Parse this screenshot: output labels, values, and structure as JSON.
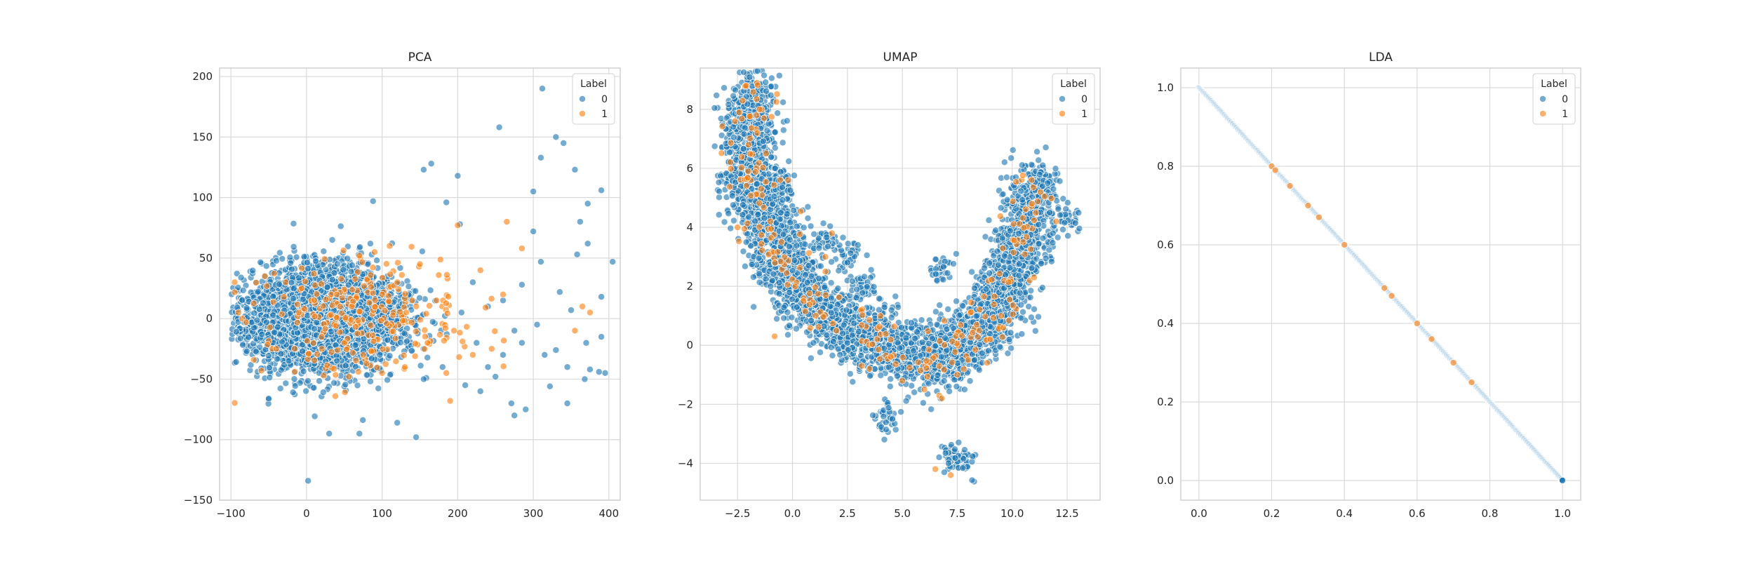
{
  "colors": {
    "label_0": "#1f77b4",
    "label_1": "#ff7f0e",
    "grid": "#d9d9d9",
    "spine": "#cccccc",
    "text": "#262626"
  },
  "chart_data": [
    {
      "type": "scatter",
      "title": "PCA",
      "xlabel": "",
      "ylabel": "",
      "xlim": [
        -115,
        415
      ],
      "ylim": [
        -150,
        207
      ],
      "xticks": [
        -100,
        0,
        100,
        200,
        300,
        400
      ],
      "yticks": [
        -150,
        -100,
        -50,
        0,
        50,
        100,
        150,
        200
      ],
      "xtick_labels": [
        "−100",
        "0",
        "100",
        "200",
        "300",
        "400"
      ],
      "ytick_labels": [
        "−150",
        "−100",
        "−50",
        "0",
        "50",
        "100",
        "150",
        "200"
      ],
      "grid": true,
      "legend": {
        "title": "Label",
        "placement": "top-right",
        "entries": [
          "0",
          "1"
        ]
      },
      "series": [
        {
          "name": "0",
          "color": "#1f77b4",
          "shape": "gaussian cloud",
          "center": [
            25,
            0
          ],
          "spread": [
            55,
            20
          ],
          "count": 4200,
          "outliers": [
            [
              312,
              190
            ],
            [
              255,
              158
            ],
            [
              330,
              150
            ],
            [
              340,
              145
            ],
            [
              355,
              123
            ],
            [
              310,
              133
            ],
            [
              165,
              128
            ],
            [
              155,
              123
            ],
            [
              390,
              106
            ],
            [
              300,
              105
            ],
            [
              372,
              95
            ],
            [
              88,
              97
            ],
            [
              300,
              72
            ],
            [
              362,
              80
            ],
            [
              372,
              62
            ],
            [
              358,
              53
            ],
            [
              405,
              47
            ],
            [
              310,
              47
            ],
            [
              200,
              118
            ],
            [
              185,
              96
            ],
            [
              203,
              78
            ],
            [
              390,
              18
            ],
            [
              285,
              28
            ],
            [
              335,
              22
            ],
            [
              350,
              7
            ],
            [
              390,
              -15
            ],
            [
              370,
              -20
            ],
            [
              330,
              -26
            ],
            [
              345,
              -40
            ],
            [
              375,
              -42
            ],
            [
              395,
              -45
            ],
            [
              322,
              -56
            ],
            [
              368,
              -50
            ],
            [
              387,
              -44
            ],
            [
              290,
              -75
            ],
            [
              345,
              -70
            ],
            [
              271,
              -70
            ],
            [
              275,
              -80
            ],
            [
              120,
              -86
            ],
            [
              145,
              -98
            ],
            [
              30,
              -95
            ],
            [
              70,
              -95
            ],
            [
              -50,
              -66
            ],
            [
              2,
              -134
            ],
            [
              250,
              -48
            ],
            [
              260,
              -30
            ],
            [
              240,
              -40
            ],
            [
              275,
              -10
            ],
            [
              315,
              -30
            ],
            [
              220,
              30
            ],
            [
              240,
              10
            ],
            [
              260,
              15
            ],
            [
              285,
              -20
            ],
            [
              305,
              -5
            ],
            [
              210,
              -55
            ],
            [
              230,
              -60
            ],
            [
              155,
              -50
            ],
            [
              180,
              -40
            ],
            [
              205,
              5
            ],
            [
              225,
              -20
            ]
          ]
        },
        {
          "name": "1",
          "color": "#ff7f0e",
          "shape": "sparse scatter",
          "center": [
            80,
            0
          ],
          "spread": [
            70,
            25
          ],
          "count": 240,
          "points": [
            [
              -90,
              5
            ],
            [
              -85,
              0
            ],
            [
              -80,
              -3
            ],
            [
              -55,
              35
            ],
            [
              265,
              80
            ],
            [
              285,
              58
            ],
            [
              200,
              77
            ],
            [
              365,
              10
            ],
            [
              375,
              5
            ],
            [
              355,
              -10
            ],
            [
              190,
              -68
            ],
            [
              195,
              -10
            ],
            [
              230,
              40
            ],
            [
              175,
              36
            ],
            [
              120,
              30
            ],
            [
              100,
              20
            ],
            [
              140,
              15
            ],
            [
              160,
              -20
            ],
            [
              130,
              -40
            ],
            [
              110,
              60
            ],
            [
              90,
              55
            ],
            [
              70,
              52
            ],
            [
              150,
              45
            ],
            [
              172,
              15
            ],
            [
              60,
              10
            ],
            [
              40,
              20
            ],
            [
              20,
              -15
            ],
            [
              -10,
              5
            ],
            [
              -40,
              -25
            ],
            [
              245,
              -25
            ],
            [
              220,
              -30
            ],
            [
              260,
              20
            ],
            [
              185,
              -45
            ],
            [
              100,
              -45
            ],
            [
              75,
              -30
            ],
            [
              50,
              -20
            ],
            [
              -30,
              18
            ]
          ]
        }
      ]
    },
    {
      "type": "scatter",
      "title": "UMAP",
      "xlabel": "",
      "ylabel": "",
      "xlim": [
        -4.2,
        14.0
      ],
      "ylim": [
        -5.25,
        9.4
      ],
      "xticks": [
        -2.5,
        0.0,
        2.5,
        5.0,
        7.5,
        10.0,
        12.5
      ],
      "yticks": [
        -4,
        -2,
        0,
        2,
        4,
        6,
        8
      ],
      "xtick_labels": [
        "−2.5",
        "0.0",
        "2.5",
        "5.0",
        "7.5",
        "10.0",
        "12.5"
      ],
      "ytick_labels": [
        "−4",
        "−2",
        "0",
        "2",
        "4",
        "6",
        "8"
      ],
      "grid": true,
      "legend": {
        "title": "Label",
        "placement": "top-right",
        "entries": [
          "0",
          "1"
        ]
      },
      "series": [
        {
          "name": "0",
          "color": "#1f77b4",
          "shape": "curved band (horseshoe)",
          "count": 4200,
          "path": [
            [
              -2.0,
              8.5
            ],
            [
              -1.8,
              7.5
            ],
            [
              -2.0,
              6.0
            ],
            [
              -1.5,
              5.0
            ],
            [
              -1.0,
              4.0
            ],
            [
              -0.5,
              3.0
            ],
            [
              0.0,
              2.2
            ],
            [
              0.8,
              1.5
            ],
            [
              2.0,
              0.8
            ],
            [
              3.5,
              0.3
            ],
            [
              5.0,
              -0.3
            ],
            [
              6.5,
              -0.5
            ],
            [
              7.8,
              0.0
            ],
            [
              8.8,
              0.8
            ],
            [
              9.7,
              1.8
            ],
            [
              10.3,
              3.0
            ],
            [
              10.8,
              4.5
            ],
            [
              11.0,
              5.5
            ]
          ],
          "extra_blobs": [
            [
              -2.8,
              5.5
            ],
            [
              -0.5,
              5.5
            ],
            [
              7.8,
              -4.0
            ],
            [
              7.2,
              -3.7
            ],
            [
              12.5,
              4.3
            ],
            [
              6.8,
              2.6
            ],
            [
              2.5,
              3.0
            ],
            [
              4.3,
              -2.5
            ],
            [
              3.2,
              2.0
            ],
            [
              1.5,
              3.5
            ]
          ]
        },
        {
          "name": "1",
          "color": "#ff7f0e",
          "shape": "sparse along band",
          "count": 220,
          "points": [
            [
              -1.5,
              8.0
            ],
            [
              -1.3,
              7.7
            ],
            [
              -1.6,
              7.2
            ],
            [
              -1.2,
              6.5
            ],
            [
              -2.0,
              6.8
            ],
            [
              -0.2,
              5.6
            ],
            [
              -1.0,
              4.2
            ],
            [
              -0.5,
              3.5
            ],
            [
              1.5,
              3.0
            ],
            [
              1.8,
              3.8
            ],
            [
              1.5,
              2.5
            ],
            [
              0.5,
              1.5
            ],
            [
              2.0,
              0.5
            ],
            [
              3.5,
              -0.8
            ],
            [
              5.0,
              -1.2
            ],
            [
              6.0,
              -1.5
            ],
            [
              6.8,
              -1.8
            ],
            [
              7.5,
              -1.0
            ],
            [
              8.0,
              -0.5
            ],
            [
              8.5,
              0.5
            ],
            [
              9.5,
              1.0
            ],
            [
              10.8,
              2.2
            ],
            [
              11.0,
              2.3
            ],
            [
              10.5,
              3.5
            ],
            [
              10.9,
              4.8
            ],
            [
              12.0,
              4.2
            ],
            [
              6.5,
              -4.2
            ],
            [
              7.2,
              -4.4
            ],
            [
              4.0,
              1.0
            ],
            [
              -2.5,
              4.0
            ],
            [
              -0.8,
              2.8
            ],
            [
              9.0,
              0.2
            ]
          ]
        }
      ]
    },
    {
      "type": "scatter",
      "title": "LDA",
      "xlabel": "",
      "ylabel": "",
      "xlim": [
        -0.05,
        1.05
      ],
      "ylim": [
        -0.05,
        1.05
      ],
      "xticks": [
        0.0,
        0.2,
        0.4,
        0.6,
        0.8,
        1.0
      ],
      "yticks": [
        0.0,
        0.2,
        0.4,
        0.6,
        0.8,
        1.0
      ],
      "xtick_labels": [
        "0.0",
        "0.2",
        "0.4",
        "0.6",
        "0.8",
        "1.0"
      ],
      "ytick_labels": [
        "0.0",
        "0.2",
        "0.4",
        "0.6",
        "0.8",
        "1.0"
      ],
      "grid": true,
      "legend": {
        "title": "Label",
        "placement": "top-right",
        "entries": [
          "0",
          "1"
        ]
      },
      "series": [
        {
          "name": "0",
          "color": "#1f77b4",
          "shape": "line y = 1 - x",
          "x_range": [
            0.0,
            1.0
          ],
          "count": 900
        },
        {
          "name": "1",
          "color": "#ff7f0e",
          "shape": "points on line y = 1 - x",
          "x": [
            0.2,
            0.21,
            0.25,
            0.3,
            0.33,
            0.4,
            0.51,
            0.53,
            0.6,
            0.64,
            0.7,
            0.75
          ]
        }
      ]
    }
  ]
}
